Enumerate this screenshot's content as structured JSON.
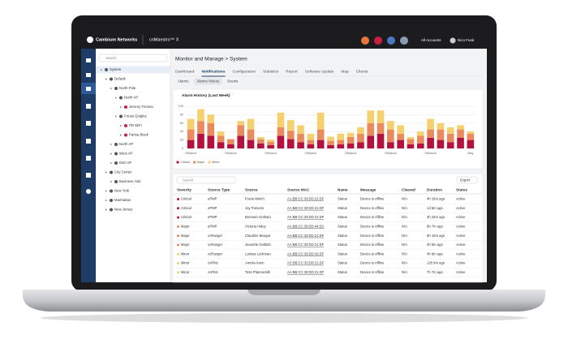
{
  "header": {
    "brand": "Cambium Networks",
    "product": "cnMaestro™ X",
    "accounts": "All Accounts",
    "user": "Nico Funk"
  },
  "tree": {
    "search": "Search",
    "items": [
      {
        "label": "System",
        "level": 0
      },
      {
        "label": "Default",
        "level": 1
      },
      {
        "label": "North Pole",
        "level": 2
      },
      {
        "label": "North AP",
        "level": 3
      },
      {
        "label": "Jeremy Trenton",
        "level": 4
      },
      {
        "label": "Fresia Quigley",
        "level": 3
      },
      {
        "label": "PD WiFi",
        "level": 4
      },
      {
        "label": "Parisa Black",
        "level": 4
      },
      {
        "label": "North AP",
        "level": 2
      },
      {
        "label": "West AP",
        "level": 2
      },
      {
        "label": "Dish AP",
        "level": 2
      },
      {
        "label": "City Center",
        "level": 1
      },
      {
        "label": "Business Hub",
        "level": 2
      },
      {
        "label": "New York",
        "level": 1
      },
      {
        "label": "Manhattan",
        "level": 1
      },
      {
        "label": "New Jersey",
        "level": 1
      }
    ]
  },
  "breadcrumb": "Monitor and Manage > System",
  "tabs": [
    "Dashboard",
    "Notifications",
    "Configuration",
    "Statistics",
    "Report",
    "Software Update",
    "Map",
    "Clients"
  ],
  "subtabs": [
    "Alarms",
    "Alarms History",
    "Events"
  ],
  "chart_data": {
    "type": "bar",
    "stacked": true,
    "title": "Alarm History (Last Week)",
    "categories": [
      "29March",
      null,
      null,
      null,
      "29March",
      null,
      null,
      null,
      "29March",
      null,
      null,
      null,
      "29March",
      null,
      null,
      null,
      "29March",
      null,
      null,
      null,
      "29March",
      null,
      null,
      null,
      "29March",
      null,
      null,
      null,
      "May"
    ],
    "series": [
      {
        "name": "Critical",
        "color": "#b3123e",
        "values": [
          20,
          35,
          30,
          15,
          10,
          30,
          20,
          12,
          8,
          30,
          22,
          15,
          10,
          20,
          8,
          10,
          12,
          15,
          30,
          35,
          15,
          20,
          10,
          12,
          25,
          20,
          15,
          25,
          20
        ]
      },
      {
        "name": "Major",
        "color": "#e98a5f",
        "values": [
          25,
          30,
          30,
          15,
          12,
          25,
          25,
          10,
          8,
          20,
          20,
          20,
          10,
          25,
          10,
          10,
          15,
          20,
          30,
          25,
          30,
          15,
          12,
          18,
          20,
          25,
          20,
          20,
          15
        ]
      },
      {
        "name": "Minor",
        "color": "#f5d06e",
        "values": [
          25,
          28,
          20,
          10,
          0,
          10,
          25,
          5,
          5,
          35,
          25,
          20,
          15,
          40,
          10,
          15,
          10,
          15,
          30,
          30,
          20,
          20,
          5,
          10,
          25,
          15,
          15,
          10,
          5
        ]
      }
    ],
    "ylim": [
      0,
      100
    ],
    "yticks": [
      0,
      20,
      40,
      60,
      80,
      100
    ],
    "grid": true,
    "legend": "bottom-left"
  },
  "table": {
    "search": "Search",
    "export": "Export",
    "columns": [
      "Severity",
      "Source Type",
      "Source",
      "Source MAC",
      "Name",
      "Message",
      "Cleared",
      "Duration",
      "Status"
    ],
    "rows": [
      [
        "Critical",
        "ePMP",
        "Freda Welch",
        "AA:BB:CC:33:DD:21:DF",
        "Status",
        "Device is offline",
        "N/A",
        "4h 15m ago",
        "Active"
      ],
      [
        "Critical",
        "ePMP",
        "Joy Parsons",
        "AA:BB:CC:33:DD:21:DF",
        "Status",
        "Device is offline",
        "N/A",
        "1d 6m ago",
        "Active"
      ],
      [
        "Critical",
        "ePMP",
        "Brennan Gotham",
        "AA:BB:CC:33:DD:21:DF",
        "Status",
        "Device is offline",
        "N/A",
        "4h 22m ago",
        "Active"
      ],
      [
        "Major",
        "ePMP",
        "Victoria Haley",
        "AA:BB:CC:33:DD:44:DC",
        "Status",
        "Device is offline",
        "N/A",
        "8h 7m ago",
        "Active"
      ],
      [
        "Major",
        "cnRanger",
        "Claudine Bengar",
        "AA:BB:CC:33:DD:21:DF",
        "Status",
        "Device is offline",
        "N/A",
        "6h 10m ago",
        "Active"
      ],
      [
        "Major",
        "cnRanger",
        "Jeanette Gottlieb",
        "AA:BB:CC:33:DD:21:DF",
        "Status",
        "Device is offline",
        "N/A",
        "2h 9m ago",
        "Active"
      ],
      [
        "Minor",
        "cnRanger",
        "Larissa Lockman",
        "AA:BB:CC:33:DD:42:DF",
        "Status",
        "Device is offline",
        "N/A",
        "4h 9m ago",
        "Active"
      ],
      [
        "Minor",
        "cnPilot",
        "Amelia Keim",
        "AC:BB:CC:33:DD:21:DF",
        "Status",
        "Device is offline",
        "N/A",
        "12h 9m ago",
        "Active"
      ],
      [
        "Minor",
        "cnPilot",
        "Tess Pfannerstill",
        "AA:BB:CC:33:DD:21:DF",
        "Status",
        "Device is offline",
        "N/A",
        "7h 7m ago",
        "Active"
      ]
    ]
  }
}
